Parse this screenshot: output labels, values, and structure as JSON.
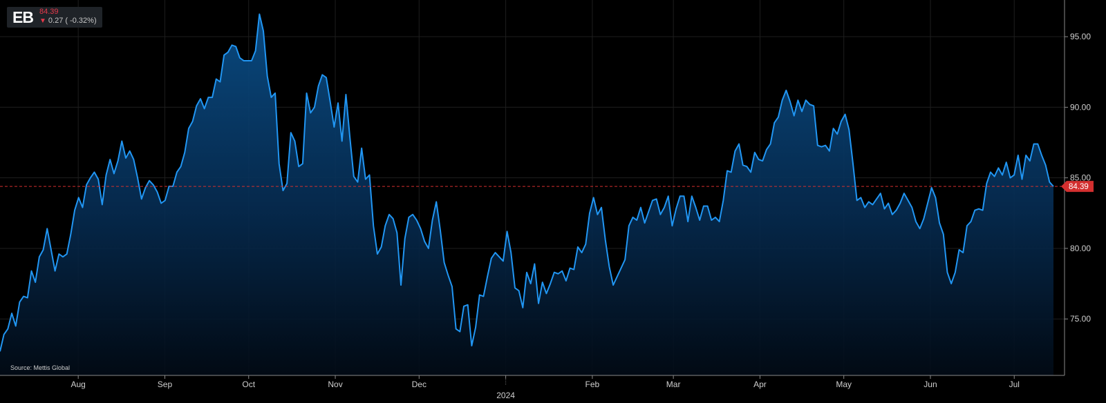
{
  "header": {
    "symbol": "EB",
    "price": "84.39",
    "change": "0.27 ( -0.32%)",
    "change_direction_icon": "down-triangle-icon"
  },
  "source": "Source: Mettis Global",
  "colors": {
    "background": "#000000",
    "line": "#2196f3",
    "area_top": "#0a4a80",
    "grid": "#1e1e1e",
    "last_price": "#d32f2f",
    "negative": "#e8394a"
  },
  "chart_data": {
    "type": "area",
    "title": "",
    "xlabel": "",
    "ylabel": "",
    "ylim": [
      71.0,
      97.6
    ],
    "y_ticks": [
      "75.00",
      "80.00",
      "85.00",
      "90.00",
      "95.00"
    ],
    "x_tick_labels": [
      "Aug",
      "Sep",
      "Oct",
      "Nov",
      "Dec",
      "2024",
      "Feb",
      "Mar",
      "Apr",
      "May",
      "Jun",
      "Jul"
    ],
    "x_tick_dates": [
      "2023-08-01",
      "2023-09-01",
      "2023-10-01",
      "2023-11-01",
      "2023-12-01",
      "2024-01-01",
      "2024-02-01",
      "2024-03-01",
      "2024-04-01",
      "2024-05-01",
      "2024-06-01",
      "2024-07-01"
    ],
    "x_range": [
      "2023-07-04",
      "2024-07-19"
    ],
    "grid": true,
    "last_price_line": true,
    "last_value_label": "84.39",
    "series": [
      {
        "values": [
          72.7,
          73.9,
          74.3,
          75.4,
          74.5,
          76.2,
          76.6,
          76.5,
          78.4,
          77.6,
          79.4,
          79.9,
          81.4,
          79.9,
          78.4,
          79.6,
          79.4,
          79.6,
          81.0,
          82.7,
          83.6,
          82.9,
          84.5,
          85.0,
          85.4,
          84.9,
          83.1,
          85.2,
          86.3,
          85.3,
          86.2,
          87.6,
          86.4,
          86.9,
          86.3,
          85.0,
          83.5,
          84.3,
          84.8,
          84.5,
          84.0,
          83.2,
          83.4,
          84.4,
          84.4,
          85.4,
          85.8,
          86.8,
          88.5,
          89.0,
          90.1,
          90.6,
          89.9,
          90.7,
          90.7,
          92.0,
          91.8,
          93.7,
          93.9,
          94.4,
          94.3,
          93.5,
          93.3,
          93.3,
          93.3,
          94.0,
          96.6,
          95.4,
          92.2,
          90.7,
          91.0,
          86.0,
          84.1,
          84.6,
          88.2,
          87.6,
          85.8,
          86.0,
          91.0,
          89.6,
          90.0,
          91.5,
          92.3,
          92.1,
          90.4,
          88.6,
          90.3,
          87.6,
          90.9,
          87.9,
          85.1,
          84.7,
          87.1,
          84.9,
          85.2,
          81.6,
          79.6,
          80.1,
          81.6,
          82.4,
          82.1,
          81.1,
          77.4,
          80.7,
          82.2,
          82.4,
          82.0,
          81.4,
          80.5,
          80.0,
          82.0,
          83.3,
          81.3,
          79.0,
          78.1,
          77.3,
          74.3,
          74.1,
          75.9,
          76.0,
          73.1,
          74.4,
          76.7,
          76.6,
          78.0,
          79.3,
          79.7,
          79.4,
          79.1,
          81.2,
          79.7,
          77.2,
          77.0,
          75.8,
          78.3,
          77.5,
          78.9,
          76.1,
          77.6,
          76.8,
          77.5,
          78.3,
          78.2,
          78.4,
          77.7,
          78.6,
          78.5,
          80.1,
          79.7,
          80.3,
          82.5,
          83.6,
          82.4,
          82.9,
          80.6,
          78.7,
          77.4,
          78.0,
          78.6,
          79.2,
          81.6,
          82.2,
          82.0,
          82.9,
          81.8,
          82.6,
          83.4,
          83.5,
          82.4,
          82.9,
          83.7,
          81.6,
          82.8,
          83.7,
          83.7,
          81.9,
          83.7,
          82.9,
          82.0,
          83.0,
          83.0,
          82.0,
          82.2,
          81.9,
          83.4,
          85.5,
          85.4,
          86.9,
          87.4,
          85.9,
          85.8,
          85.4,
          86.8,
          86.3,
          86.2,
          87.0,
          87.4,
          88.9,
          89.3,
          90.5,
          91.2,
          90.4,
          89.4,
          90.5,
          89.7,
          90.5,
          90.2,
          90.1,
          87.3,
          87.2,
          87.3,
          86.9,
          88.5,
          88.1,
          89.0,
          89.5,
          88.4,
          86.0,
          83.4,
          83.6,
          82.9,
          83.3,
          83.1,
          83.5,
          83.9,
          82.8,
          83.2,
          82.4,
          82.7,
          83.2,
          83.9,
          83.4,
          82.9,
          81.9,
          81.4,
          82.1,
          83.2,
          84.3,
          83.6,
          81.8,
          81.0,
          78.3,
          77.5,
          78.3,
          79.9,
          79.7,
          81.6,
          81.9,
          82.7,
          82.8,
          82.7,
          84.6,
          85.4,
          85.1,
          85.7,
          85.2,
          86.1,
          85.0,
          85.2,
          86.6,
          84.9,
          86.6,
          86.2,
          87.4,
          87.4,
          86.6,
          85.9,
          84.7,
          84.39
        ]
      }
    ]
  }
}
